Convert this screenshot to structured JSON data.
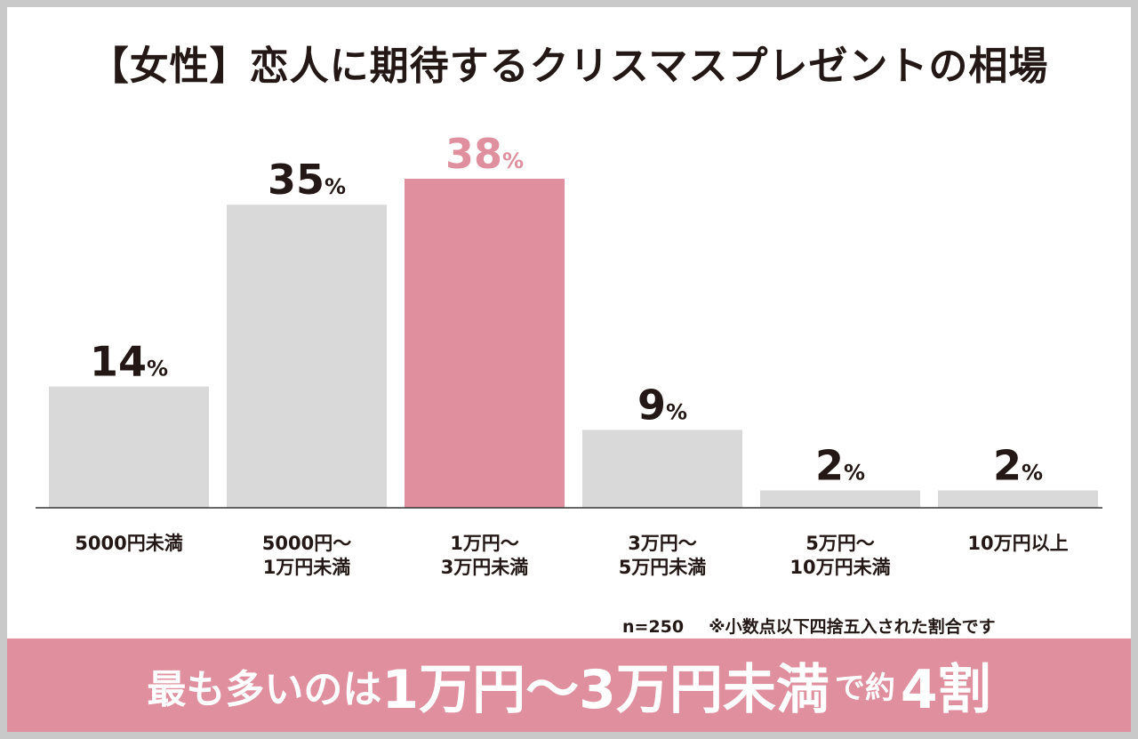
{
  "chart_data": {
    "type": "bar",
    "title": "【女性】恋人に期待するクリスマスプレゼントの相場",
    "categories": [
      [
        "5000円未満"
      ],
      [
        "5000円〜",
        "1万円未満"
      ],
      [
        "1万円〜",
        "3万円未満"
      ],
      [
        "3万円〜",
        "5万円未満"
      ],
      [
        "5万円〜",
        "10万円未満"
      ],
      [
        "10万円以上"
      ]
    ],
    "values": [
      14,
      35,
      38,
      9,
      2,
      2
    ],
    "value_unit": "%",
    "highlight_index": 2,
    "xlabel": "",
    "ylabel": "",
    "grid": false,
    "colors": {
      "bar": "#d9d9d9",
      "highlight": "#df8f9d",
      "label": "#231815",
      "highlight_label": "#df8f9d"
    }
  },
  "note": {
    "sample": "n=250",
    "text": "※小数点以下四捨五入された割合です"
  },
  "banner": {
    "part1": "最も多いのは",
    "part2": "1万円〜3万円未満",
    "part3": "で約",
    "part4": "4割"
  }
}
